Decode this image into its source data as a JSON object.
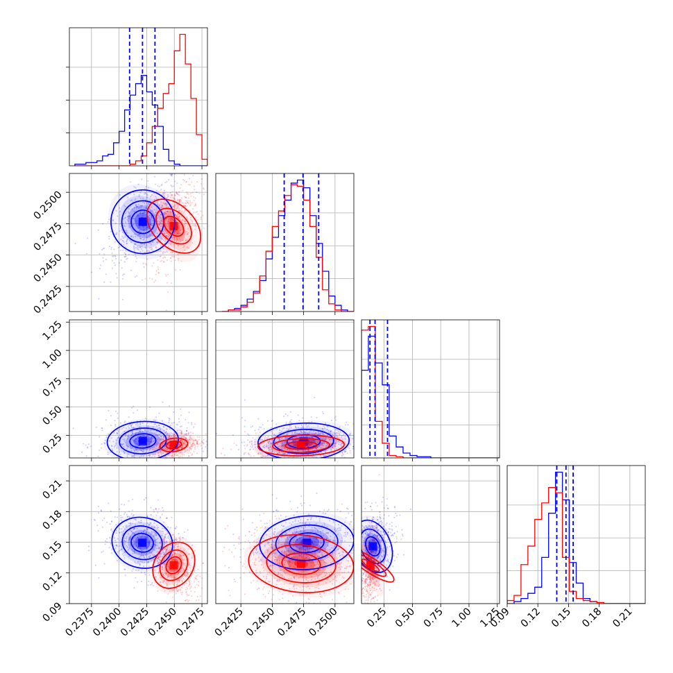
{
  "chart_data": {
    "type": "corner",
    "title": "",
    "colors": {
      "series_a": "#0000ff",
      "series_b": "#ff0000"
    },
    "series": [
      {
        "color": "#0000ff"
      },
      {
        "color": "#ff0000"
      }
    ],
    "grid": true,
    "params": [
      {
        "range": [
          0.2355,
          0.248
        ],
        "ticks": [
          0.2375,
          0.24,
          0.2425,
          0.245,
          0.2475
        ],
        "tick_labels": [
          "0.2375",
          "0.2400",
          "0.2425",
          "0.2450",
          "0.2475"
        ]
      },
      {
        "range": [
          0.2405,
          0.2515
        ],
        "ticks": [
          0.2425,
          0.245,
          0.2475,
          0.25
        ],
        "tick_labels": [
          "0.2425",
          "0.2450",
          "0.2475",
          "0.2500"
        ]
      },
      {
        "range": [
          0.05,
          1.27
        ],
        "ticks": [
          0.25,
          0.5,
          0.75,
          1.0,
          1.25
        ],
        "tick_labels": [
          "0.25",
          "0.50",
          "0.75",
          "1.00",
          "1.25"
        ]
      },
      {
        "range": [
          0.09,
          0.225
        ],
        "ticks": [
          0.09,
          0.12,
          0.15,
          0.18,
          0.21
        ],
        "tick_labels": [
          "0.09",
          "0.12",
          "0.15",
          "0.18",
          "0.21"
        ]
      }
    ],
    "histograms": [
      {
        "param": 0,
        "bin_start": 0.236,
        "bin_width": 0.0005,
        "series": [
          {
            "color": "#0000ff",
            "values": [
              1,
              1,
              2,
              2,
              3,
              6,
              7,
              14,
              21,
              34,
              43,
              50,
              55,
              45,
              37,
              24,
              10,
              3,
              1,
              0,
              0,
              0,
              0,
              0,
              0
            ]
          },
          {
            "color": "#ff0000",
            "values": [
              0,
              0,
              0,
              0,
              0,
              0,
              0,
              0,
              0,
              0,
              1,
              3,
              6,
              14,
              24,
              35,
              44,
              50,
              70,
              80,
              62,
              41,
              19,
              4,
              0
            ]
          }
        ],
        "quantiles": [
          0.24095,
          0.24212,
          0.24325
        ],
        "quantile_color": "#0000ff"
      },
      {
        "param": 1,
        "bin_start": 0.241,
        "bin_width": 0.0005,
        "series": [
          {
            "color": "#0000ff",
            "values": [
              0,
              1,
              2,
              4,
              8,
              13,
              20,
              34,
              48,
              62,
              72,
              83,
              85,
              80,
              62,
              44,
              26,
              10,
              4,
              1,
              0
            ]
          },
          {
            "color": "#ff0000",
            "values": [
              0,
              1,
              1,
              3,
              6,
              12,
              23,
              39,
              55,
              65,
              75,
              82,
              81,
              72,
              55,
              35,
              14,
              5,
              1,
              0,
              0
            ]
          }
        ],
        "quantiles": [
          0.24595,
          0.24745,
          0.2487
        ],
        "quantile_color": "#0000ff"
      },
      {
        "param": 2,
        "bin_start": 0.05,
        "bin_width": 0.0613,
        "series": [
          {
            "color": "#0000ff",
            "values": [
              72,
              100,
              78,
              60,
              18,
              9,
              4,
              2,
              1,
              1,
              0,
              0,
              0,
              0,
              0,
              0,
              0,
              0,
              0,
              0
            ]
          },
          {
            "color": "#ff0000",
            "values": [
              105,
              108,
              30,
              12,
              2,
              1,
              0,
              0,
              0,
              0,
              0,
              0,
              0,
              0,
              0,
              0,
              0,
              0,
              0,
              0
            ]
          }
        ],
        "quantiles": [
          0.125,
          0.17,
          0.28
        ],
        "quantile_color": "#0000ff"
      },
      {
        "param": 3,
        "bin_start": 0.09,
        "bin_width": 0.00675,
        "series": [
          {
            "color": "#0000ff",
            "values": [
              0,
              2,
              5,
              10,
              16,
              45,
              88,
              128,
              101,
              40,
              20,
              5,
              2,
              1,
              0,
              0,
              0,
              0,
              0,
              0
            ]
          },
          {
            "color": "#ff0000",
            "values": [
              3,
              8,
              38,
              56,
              82,
              98,
              113,
              108,
              45,
              12,
              5,
              3,
              2,
              1,
              0,
              0,
              0,
              0,
              0,
              0
            ]
          }
        ],
        "quantiles": [
          0.1385,
          0.1475,
          0.1545
        ],
        "quantile_color": "#0000ff"
      }
    ],
    "joint": [
      {
        "row": 1,
        "col": 0,
        "rho": [
          0.55,
          0.55
        ],
        "series": [
          {
            "color": "#0000ff",
            "mean": [
              0.24215,
              0.24765
            ],
            "sd": [
              0.0013,
              0.00135
            ],
            "levels": [
              0.012,
              0.028,
              0.045
            ]
          },
          {
            "color": "#ff0000",
            "mean": [
              0.24495,
              0.2473
            ],
            "sd": [
              0.00085,
              0.00135
            ],
            "levels": [
              0.012,
              0.028,
              0.045
            ]
          }
        ]
      },
      {
        "row": 2,
        "col": 0,
        "rho": [
          0.1,
          0.25
        ],
        "series": [
          {
            "color": "#0000ff",
            "mean": [
              0.24215,
              0.2
            ],
            "sd": [
              0.00155,
              0.085
            ],
            "levels": [
              0.018,
              0.03,
              0.045
            ]
          },
          {
            "color": "#ff0000",
            "mean": [
              0.24495,
              0.165
            ],
            "sd": [
              0.0009,
              0.045
            ],
            "levels": [
              0.018,
              0.03
            ]
          }
        ]
      },
      {
        "row": 2,
        "col": 1,
        "rho": [
          0.08,
          0.1
        ],
        "series": [
          {
            "color": "#0000ff",
            "mean": [
              0.2475,
              0.195
            ],
            "sd": [
              0.00175,
              0.08
            ],
            "levels": [
              0.018,
              0.03,
              0.045
            ]
          },
          {
            "color": "#ff0000",
            "mean": [
              0.2473,
              0.16
            ],
            "sd": [
              0.00165,
              0.045
            ],
            "levels": [
              0.018,
              0.03,
              0.045
            ]
          }
        ]
      },
      {
        "row": 3,
        "col": 0,
        "rho": [
          -0.25,
          -0.45
        ],
        "series": [
          {
            "color": "#0000ff",
            "mean": [
              0.2421,
              0.1495
            ],
            "sd": [
              0.0013,
              0.0125
            ],
            "levels": [
              0.02,
              0.035,
              0.05
            ]
          },
          {
            "color": "#ff0000",
            "mean": [
              0.24495,
              0.1275
            ],
            "sd": [
              0.0008,
              0.0125
            ],
            "levels": [
              0.02,
              0.035,
              0.05
            ]
          }
        ]
      },
      {
        "row": 3,
        "col": 1,
        "rho": [
          0.12,
          -0.15
        ],
        "series": [
          {
            "color": "#0000ff",
            "mean": [
              0.24775,
              0.1495
            ],
            "sd": [
              0.0018,
              0.013
            ],
            "levels": [
              0.02,
              0.035,
              0.05
            ]
          },
          {
            "color": "#ff0000",
            "mean": [
              0.2473,
              0.129
            ],
            "sd": [
              0.002,
              0.014
            ],
            "levels": [
              0.02,
              0.035,
              0.05
            ]
          }
        ]
      },
      {
        "row": 3,
        "col": 2,
        "rho": [
          0.25,
          0.35
        ],
        "series": [
          {
            "color": "#0000ff",
            "mean": [
              0.15,
              0.146
            ],
            "sd": [
              0.075,
              0.0135
            ],
            "levels": [
              0.02,
              0.035,
              0.05
            ]
          },
          {
            "color": "#ff0000",
            "mean": [
              0.13,
              0.1275
            ],
            "sd": [
              0.03,
              0.014
            ],
            "levels": [
              0.02,
              0.035,
              0.05
            ]
          }
        ]
      }
    ]
  }
}
